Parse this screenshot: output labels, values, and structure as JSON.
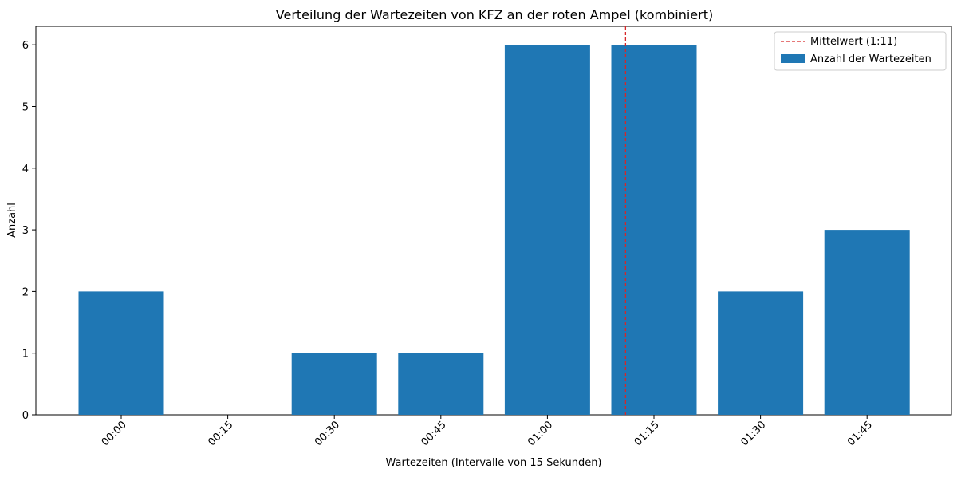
{
  "chart_data": {
    "type": "bar",
    "title": "Verteilung der Wartezeiten von KFZ an der roten Ampel (kombiniert)",
    "xlabel": "Wartezeiten (Intervalle von 15 Sekunden)",
    "ylabel": "Anzahl",
    "categories": [
      "00:00",
      "00:15",
      "00:30",
      "00:45",
      "01:00",
      "01:15",
      "01:30",
      "01:45"
    ],
    "series": [
      {
        "name": "Anzahl der Wartezeiten",
        "values": [
          2,
          0,
          1,
          1,
          6,
          6,
          2,
          3
        ],
        "color": "#1f77b4"
      }
    ],
    "yticks": [
      "0",
      "1",
      "2",
      "3",
      "4",
      "5",
      "6"
    ],
    "ylim": [
      0,
      6.3
    ],
    "reference_line": {
      "label": "Mittelwert (1:11)",
      "x_seconds": 71,
      "color": "#d62728",
      "style": "dashed"
    },
    "legend": {
      "position": "top-right",
      "entries": [
        "Mittelwert (1:11)",
        "Anzahl der Wartezeiten"
      ]
    },
    "grid": false
  }
}
